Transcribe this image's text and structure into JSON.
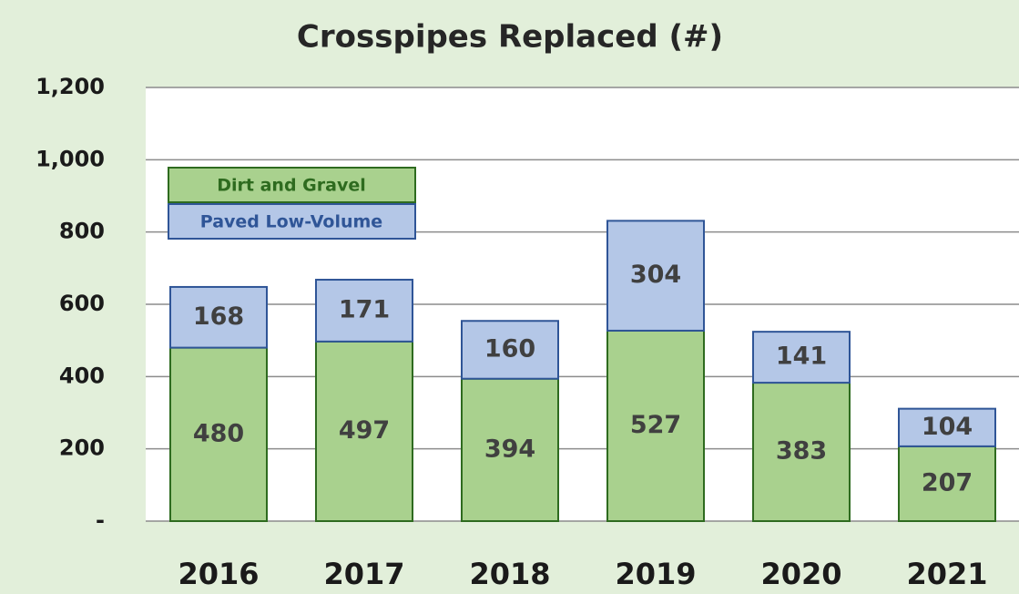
{
  "chart_data": {
    "type": "stacked_bar",
    "title": "Crosspipes Replaced (#)",
    "categories": [
      "2016",
      "2017",
      "2018",
      "2019",
      "2020",
      "2021"
    ],
    "series": [
      {
        "name": "Dirt and Gravel",
        "color": "#a9d18e",
        "values": [
          480,
          497,
          394,
          527,
          383,
          207
        ]
      },
      {
        "name": "Paved Low-Volume",
        "color": "#b4c7e7",
        "values": [
          168,
          171,
          160,
          304,
          141,
          104
        ]
      }
    ],
    "ylim": [
      0,
      1200
    ],
    "yticks": [
      {
        "value": 0,
        "label": "-"
      },
      200,
      400,
      600,
      800,
      {
        "value": 1000,
        "label": "1,000"
      },
      {
        "value": 1200,
        "label": "1,200"
      }
    ],
    "grid": true,
    "legend": "upper left"
  }
}
